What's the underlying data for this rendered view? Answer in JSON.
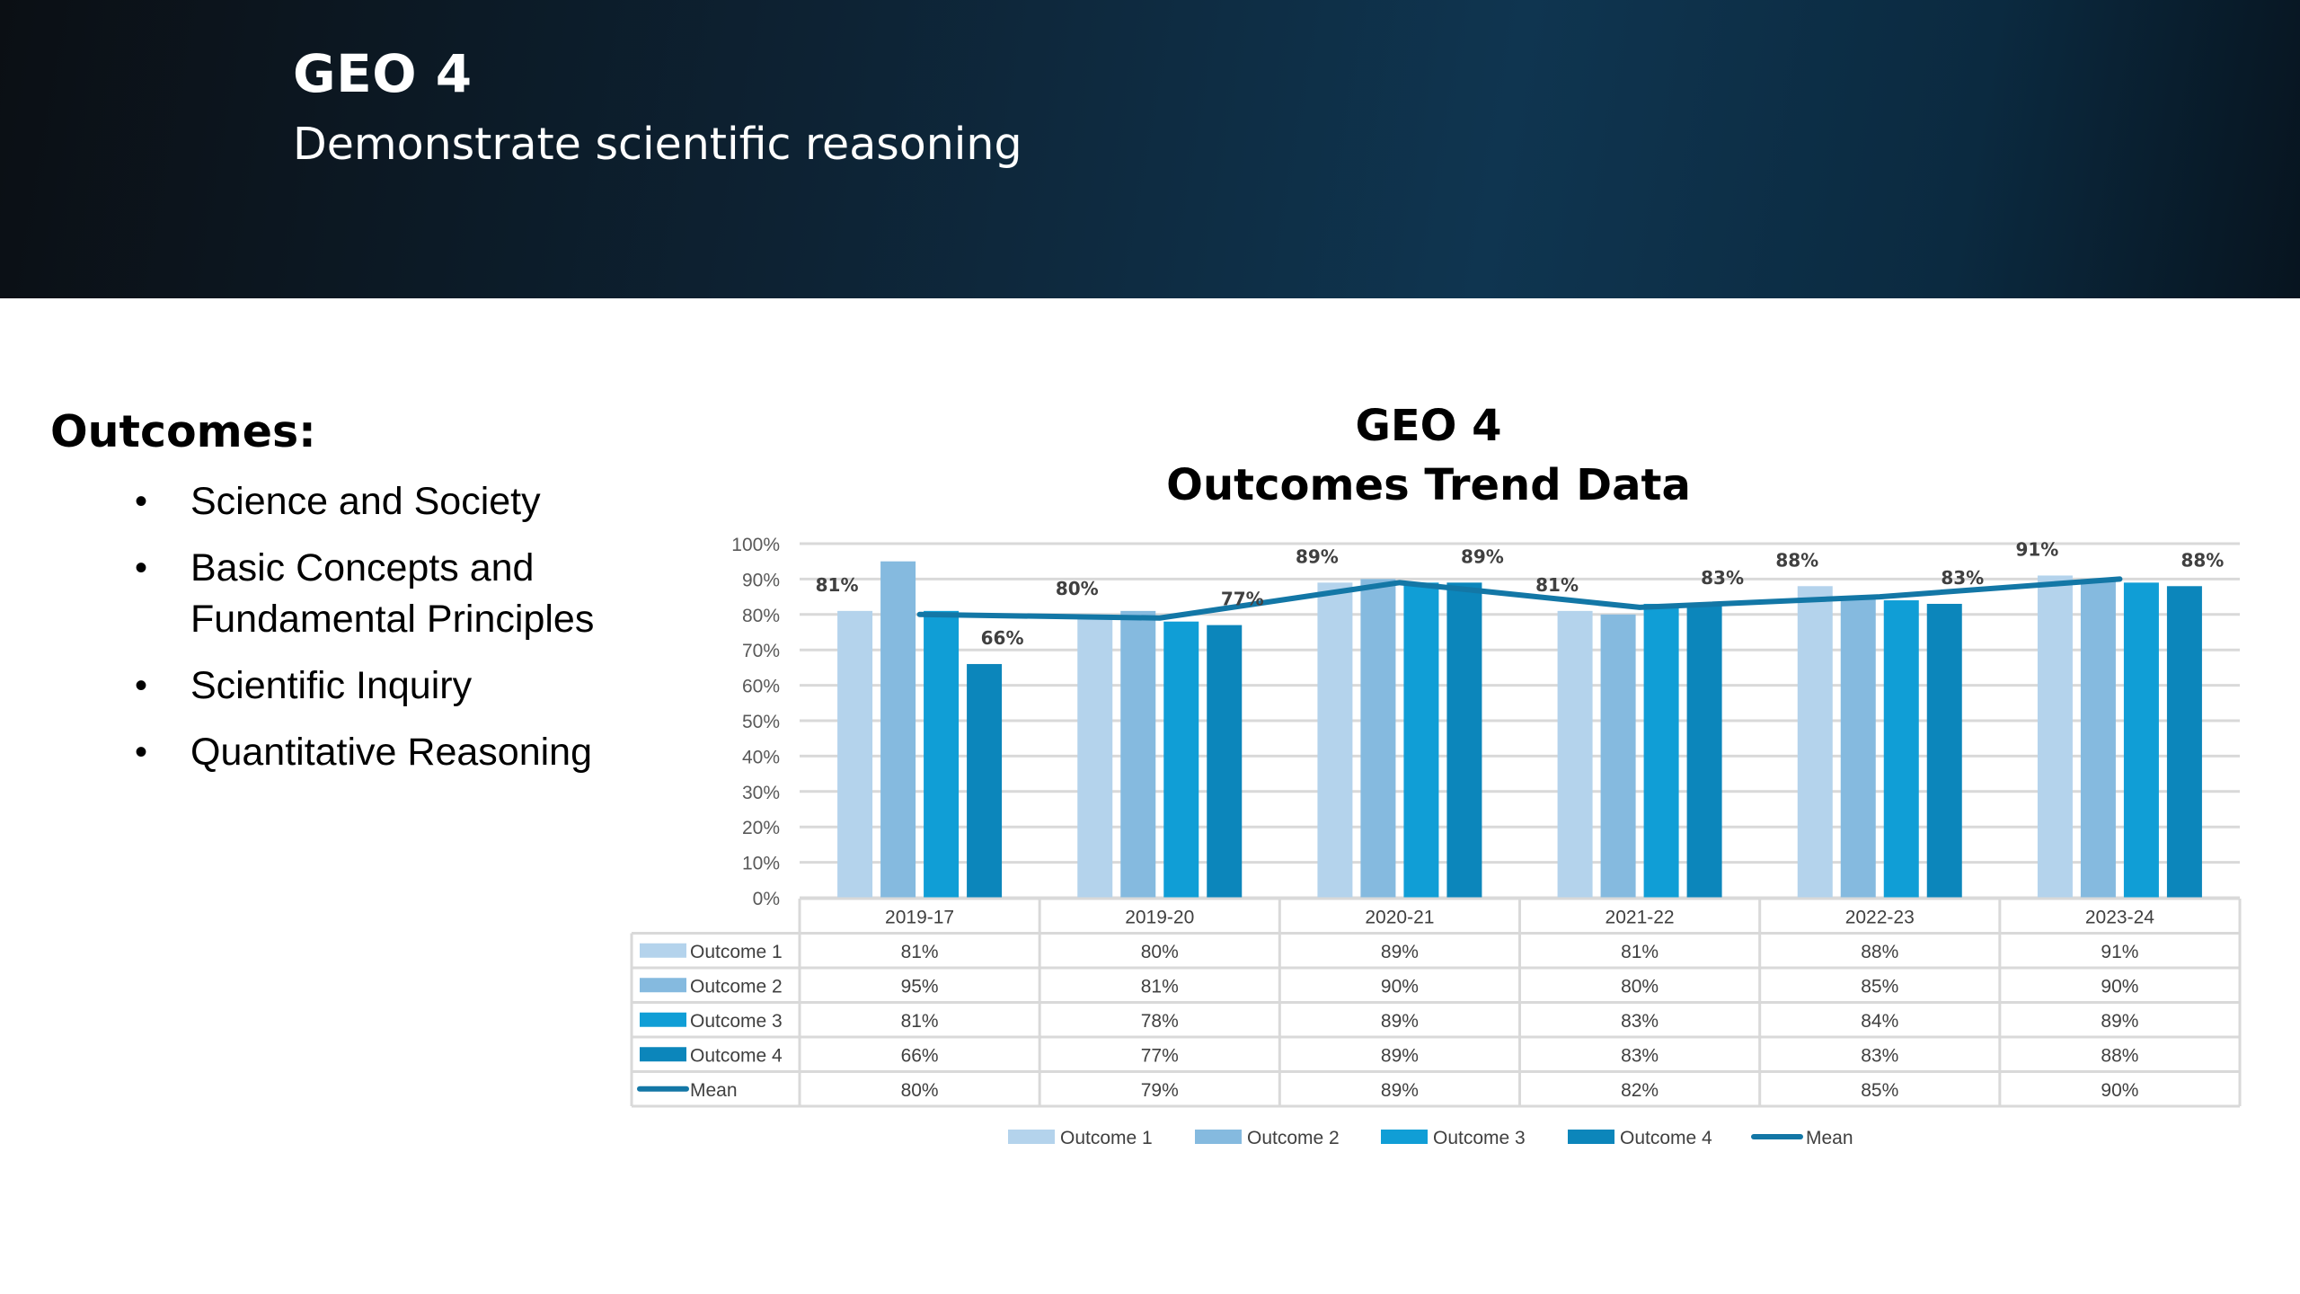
{
  "header": {
    "title": "GEO 4",
    "subtitle": "Demonstrate scientific reasoning"
  },
  "outcomes": {
    "heading": "Outcomes:",
    "items": [
      "Science and Society",
      "Basic Concepts and Fundamental Principles",
      "Scientific Inquiry",
      "Quantitative Reasoning"
    ]
  },
  "colors": {
    "outcome1": "#b4d3ec",
    "outcome2": "#85badf",
    "outcome3": "#109ed6",
    "outcome4": "#0c86bb",
    "mean": "#1377a6",
    "grid": "#d9d9d9"
  },
  "chart_data": {
    "type": "bar",
    "title_lines": [
      "GEO 4",
      "Outcomes Trend Data"
    ],
    "categories": [
      "2019-17",
      "2019-20",
      "2020-21",
      "2021-22",
      "2022-23",
      "2023-24"
    ],
    "ylim": [
      0,
      100
    ],
    "yticks": [
      "0%",
      "10%",
      "20%",
      "30%",
      "40%",
      "50%",
      "60%",
      "70%",
      "80%",
      "90%",
      "100%"
    ],
    "grid": true,
    "legend_position": "bottom",
    "series": [
      {
        "name": "Outcome 1",
        "type": "bar",
        "values": [
          81,
          80,
          89,
          81,
          88,
          91
        ],
        "table": [
          "81%",
          "80%",
          "89%",
          "81%",
          "88%",
          "91%"
        ]
      },
      {
        "name": "Outcome 2",
        "type": "bar",
        "values": [
          95,
          81,
          90,
          80,
          85,
          90
        ],
        "table": [
          "95%",
          "81%",
          "90%",
          "80%",
          "85%",
          "90%"
        ]
      },
      {
        "name": "Outcome 3",
        "type": "bar",
        "values": [
          81,
          78,
          89,
          83,
          84,
          89
        ],
        "table": [
          "81%",
          "78%",
          "89%",
          "83%",
          "84%",
          "89%"
        ]
      },
      {
        "name": "Outcome 4",
        "type": "bar",
        "values": [
          66,
          77,
          89,
          83,
          83,
          88
        ],
        "table": [
          "66%",
          "77%",
          "89%",
          "83%",
          "83%",
          "88%"
        ]
      },
      {
        "name": "Mean",
        "type": "line",
        "values": [
          80,
          79,
          89,
          82,
          85,
          90
        ],
        "table": [
          "80%",
          "79%",
          "89%",
          "82%",
          "85%",
          "90%"
        ]
      }
    ],
    "data_labels": [
      {
        "category": 0,
        "series": 0,
        "text": "81%"
      },
      {
        "category": 0,
        "series": 3,
        "text": "66%"
      },
      {
        "category": 1,
        "series": 0,
        "text": "80%"
      },
      {
        "category": 1,
        "series": 3,
        "text": "77%"
      },
      {
        "category": 2,
        "series": 0,
        "text": "89%"
      },
      {
        "category": 2,
        "series": 3,
        "text": "89%"
      },
      {
        "category": 3,
        "series": 0,
        "text": "81%"
      },
      {
        "category": 3,
        "series": 3,
        "text": "83%"
      },
      {
        "category": 4,
        "series": 0,
        "text": "88%"
      },
      {
        "category": 4,
        "series": 3,
        "text": "83%"
      },
      {
        "category": 5,
        "series": 0,
        "text": "91%"
      },
      {
        "category": 5,
        "series": 3,
        "text": "88%"
      }
    ]
  }
}
